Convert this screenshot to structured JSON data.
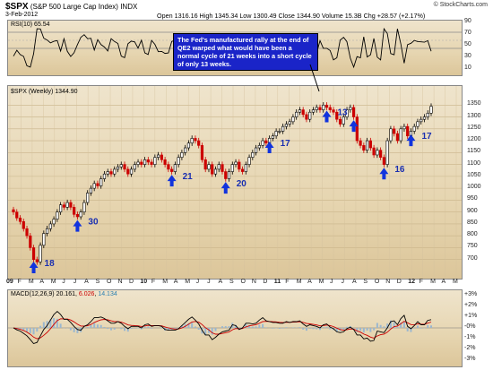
{
  "header": {
    "symbol": "$SPX",
    "description": "(S&P 500 Large Cap Index)",
    "exchange": "INDX",
    "date": "3-Feb-2012",
    "quote": "Open 1316.16  High 1345.34  Low 1300.49  Close 1344.90  Volume 15.3B  Chg +28.57 (+2.17%)",
    "credit": "© StockCharts.com"
  },
  "rsi": {
    "label": "RSI(10) 65.54",
    "levels": [
      "70",
      "50",
      "30"
    ],
    "ticks": [
      "90",
      "70",
      "50",
      "30",
      "10"
    ]
  },
  "price_label": "$SPX (Weekly) 1344.90",
  "macd": {
    "label_prefix": "MACD(12,26,9)",
    "macd_value": "20.161",
    "signal_value": "6.026",
    "hist_value": "14.134",
    "ticks": [
      "+3%",
      "+2%",
      "+1%",
      "-0%",
      "-1%",
      "-2%",
      "-3%"
    ]
  },
  "annotation": "The Fed's manufactured rally at the end of QE2 warped what would have been a normal cycle of 21 weeks into a short cycle of only 13 weeks.",
  "colors": {
    "up": "#000000",
    "down": "#cc0000",
    "arrow": "#1133dd",
    "cycle_text": "#1a2fb0",
    "rsi_line": "#000000",
    "macd_line": "#000000",
    "signal_line": "#cc0000"
  },
  "chart_data": {
    "type": "candlestick",
    "title": "$SPX (Weekly)",
    "ylim": [
      650,
      1400
    ],
    "y_ticks": [
      700,
      750,
      800,
      850,
      900,
      950,
      1000,
      1050,
      1100,
      1150,
      1200,
      1250,
      1300,
      1350
    ],
    "x_tick_labels": [
      "09",
      "F",
      "M",
      "A",
      "M",
      "J",
      "J",
      "A",
      "S",
      "O",
      "N",
      "D",
      "10",
      "F",
      "M",
      "A",
      "M",
      "J",
      "J",
      "A",
      "S",
      "O",
      "N",
      "D",
      "11",
      "F",
      "M",
      "A",
      "M",
      "J",
      "J",
      "A",
      "S",
      "O",
      "N",
      "D",
      "12",
      "F",
      "M",
      "A",
      "M"
    ],
    "series_points": [
      [
        0,
        900
      ],
      [
        1,
        875
      ],
      [
        2,
        860
      ],
      [
        3,
        830
      ],
      [
        4,
        800
      ],
      [
        5,
        750
      ],
      [
        6,
        700
      ],
      [
        7,
        690
      ],
      [
        8,
        760
      ],
      [
        9,
        810
      ],
      [
        10,
        830
      ],
      [
        11,
        850
      ],
      [
        12,
        870
      ],
      [
        13,
        900
      ],
      [
        14,
        930
      ],
      [
        15,
        920
      ],
      [
        16,
        940
      ],
      [
        17,
        920
      ],
      [
        18,
        890
      ],
      [
        19,
        880
      ],
      [
        20,
        900
      ],
      [
        21,
        940
      ],
      [
        22,
        980
      ],
      [
        23,
        1000
      ],
      [
        24,
        1020
      ],
      [
        25,
        1010
      ],
      [
        26,
        1040
      ],
      [
        27,
        1060
      ],
      [
        28,
        1070
      ],
      [
        29,
        1060
      ],
      [
        30,
        1080
      ],
      [
        31,
        1090
      ],
      [
        32,
        1100
      ],
      [
        33,
        1080
      ],
      [
        34,
        1060
      ],
      [
        35,
        1080
      ],
      [
        36,
        1100
      ],
      [
        37,
        1110
      ],
      [
        38,
        1100
      ],
      [
        39,
        1120
      ],
      [
        40,
        1110
      ],
      [
        41,
        1100
      ],
      [
        42,
        1130
      ],
      [
        43,
        1140
      ],
      [
        44,
        1120
      ],
      [
        45,
        1100
      ],
      [
        46,
        1080
      ],
      [
        47,
        1070
      ],
      [
        48,
        1100
      ],
      [
        49,
        1130
      ],
      [
        50,
        1150
      ],
      [
        51,
        1170
      ],
      [
        52,
        1190
      ],
      [
        53,
        1210
      ],
      [
        54,
        1200
      ],
      [
        55,
        1180
      ],
      [
        56,
        1120
      ],
      [
        57,
        1080
      ],
      [
        58,
        1100
      ],
      [
        59,
        1060
      ],
      [
        60,
        1080
      ],
      [
        61,
        1100
      ],
      [
        62,
        1070
      ],
      [
        63,
        1040
      ],
      [
        64,
        1070
      ],
      [
        65,
        1100
      ],
      [
        66,
        1110
      ],
      [
        67,
        1080
      ],
      [
        68,
        1070
      ],
      [
        69,
        1100
      ],
      [
        70,
        1130
      ],
      [
        71,
        1150
      ],
      [
        72,
        1170
      ],
      [
        73,
        1180
      ],
      [
        74,
        1200
      ],
      [
        75,
        1190
      ],
      [
        76,
        1210
      ],
      [
        77,
        1220
      ],
      [
        78,
        1240
      ],
      [
        79,
        1240
      ],
      [
        80,
        1260
      ],
      [
        81,
        1270
      ],
      [
        82,
        1280
      ],
      [
        83,
        1300
      ],
      [
        84,
        1320
      ],
      [
        85,
        1330
      ],
      [
        86,
        1310
      ],
      [
        87,
        1290
      ],
      [
        88,
        1320
      ],
      [
        89,
        1330
      ],
      [
        90,
        1340
      ],
      [
        91,
        1330
      ],
      [
        92,
        1350
      ],
      [
        93,
        1340
      ],
      [
        94,
        1330
      ],
      [
        95,
        1320
      ],
      [
        96,
        1290
      ],
      [
        97,
        1270
      ],
      [
        98,
        1300
      ],
      [
        99,
        1330
      ],
      [
        100,
        1340
      ],
      [
        101,
        1300
      ],
      [
        102,
        1200
      ],
      [
        103,
        1180
      ],
      [
        104,
        1160
      ],
      [
        105,
        1200
      ],
      [
        106,
        1170
      ],
      [
        107,
        1140
      ],
      [
        108,
        1160
      ],
      [
        109,
        1130
      ],
      [
        110,
        1100
      ],
      [
        111,
        1200
      ],
      [
        112,
        1250
      ],
      [
        113,
        1230
      ],
      [
        114,
        1200
      ],
      [
        115,
        1250
      ],
      [
        116,
        1260
      ],
      [
        117,
        1220
      ],
      [
        118,
        1240
      ],
      [
        119,
        1260
      ],
      [
        120,
        1280
      ],
      [
        121,
        1290
      ],
      [
        122,
        1300
      ],
      [
        123,
        1316
      ],
      [
        124,
        1345
      ]
    ],
    "cycle_lows": [
      {
        "week": 6,
        "label": "18"
      },
      {
        "week": 19,
        "label": "30"
      },
      {
        "week": 47,
        "label": "21"
      },
      {
        "week": 63,
        "label": "20"
      },
      {
        "week": 76,
        "label": "17"
      },
      {
        "week": 93,
        "label": "13"
      },
      {
        "week": 101,
        "label": ""
      },
      {
        "week": 110,
        "label": "16"
      },
      {
        "week": 118,
        "label": "17"
      }
    ]
  }
}
